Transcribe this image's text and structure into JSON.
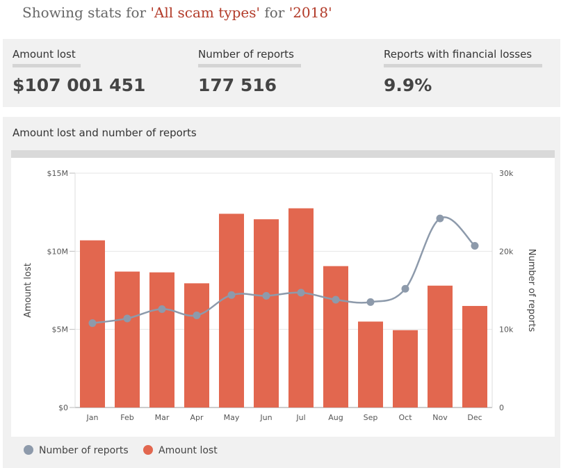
{
  "headline": {
    "prefix": "Showing stats for ",
    "scam_type": "'All scam types'",
    "middle": " for ",
    "year": "'2018'"
  },
  "stats": [
    {
      "label": "Amount lost",
      "value": "$107 001 451"
    },
    {
      "label": "Number of reports",
      "value": "177 516"
    },
    {
      "label": "Reports with financial losses",
      "value": "9.9%"
    }
  ],
  "colors": {
    "bar": "#e2674f",
    "line": "#8d9aab",
    "headline_highlight": "#b23a28"
  },
  "chart_data": {
    "type": "bar+line",
    "title": "Amount lost and number of reports",
    "categories": [
      "Jan",
      "Feb",
      "Mar",
      "Apr",
      "May",
      "Jun",
      "Jul",
      "Aug",
      "Sep",
      "Oct",
      "Nov",
      "Dec"
    ],
    "series": [
      {
        "name": "Amount lost",
        "type": "bar",
        "axis": "left",
        "values": [
          10700000,
          8700000,
          8650000,
          7950000,
          12400000,
          12050000,
          12750000,
          9050000,
          5500000,
          4950000,
          7800000,
          6500000
        ]
      },
      {
        "name": "Number of reports",
        "type": "line",
        "axis": "right",
        "values": [
          10800,
          11400,
          12600,
          11800,
          14400,
          14300,
          14700,
          13800,
          13500,
          15200,
          24200,
          20700
        ]
      }
    ],
    "y_left": {
      "label": "Amount lost",
      "ticks": [
        "$0",
        "$5M",
        "$10M",
        "$15M"
      ],
      "range": [
        0,
        15000000
      ]
    },
    "y_right": {
      "label": "Number of reports",
      "ticks": [
        "0",
        "10k",
        "20k",
        "30k"
      ],
      "range": [
        0,
        30000
      ]
    },
    "legend": [
      "Number of reports",
      "Amount lost"
    ]
  }
}
